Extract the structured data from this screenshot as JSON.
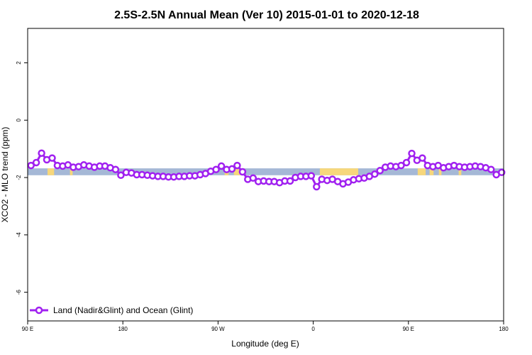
{
  "chart_data": {
    "type": "line",
    "title": "2.5S-2.5N Annual Mean (Ver 10)   2015-01-01 to 2020-12-18",
    "xlabel": "Longitude (deg E)",
    "ylabel": "XCO2 - MLO trend (ppm)",
    "xlim": [
      90,
      450
    ],
    "ylim": [
      -7.0,
      3.2
    ],
    "x_ticks": [
      {
        "value": 90,
        "label": "90 E"
      },
      {
        "value": 162,
        "label": "180"
      },
      {
        "value": 234,
        "label": "90 W"
      },
      {
        "value": 306,
        "label": "0"
      },
      {
        "value": 378,
        "label": "90 E"
      },
      {
        "value": 450,
        "label": "180"
      }
    ],
    "y_ticks": [
      {
        "value": 2,
        "label": "2"
      },
      {
        "value": 0,
        "label": "0"
      },
      {
        "value": -2,
        "label": "-2"
      },
      {
        "value": -4,
        "label": "-4"
      },
      {
        "value": -6,
        "label": "-6"
      }
    ],
    "grid": false,
    "legend": {
      "position": "bottom-left",
      "entries": [
        "Land (Nadir&Glint) and Ocean (Glint)"
      ]
    },
    "series": [
      {
        "name": "Land (Nadir&Glint) and Ocean (Glint)",
        "color": "#a020f0",
        "x": [
          92.5,
          96.5,
          100.5,
          104.5,
          108.5,
          112.5,
          116.5,
          120.5,
          124.5,
          128.5,
          132.5,
          136.5,
          140.5,
          144.5,
          148.5,
          152.5,
          156.5,
          160.5,
          164.5,
          168.5,
          172.5,
          176.5,
          180.5,
          184.5,
          188.5,
          192.5,
          196.5,
          200.5,
          204.5,
          208.5,
          212.5,
          216.5,
          220.5,
          224.5,
          228.5,
          232.5,
          236.5,
          240.5,
          244.5,
          248.5,
          252.5,
          256.5,
          260.5,
          264.5,
          268.5,
          272.5,
          276.5,
          280.5,
          284.5,
          288.5,
          292.5,
          296.5,
          300.5,
          304.5,
          308.5,
          312.5,
          316.5,
          320.5,
          324.5,
          328.5,
          332.5,
          336.5,
          340.5,
          344.5,
          348.5,
          352.5,
          356.5,
          360.5,
          364.5,
          368.5,
          372.5,
          376.5,
          380.5,
          384.5,
          388.5,
          392.5,
          396.5,
          400.5,
          404.5,
          408.5,
          412.5,
          416.5,
          420.5,
          424.5,
          428.5,
          432.5,
          436.5,
          440.5,
          444.5,
          448.5
        ],
        "values": [
          -1.58,
          -1.48,
          -1.15,
          -1.38,
          -1.32,
          -1.58,
          -1.6,
          -1.56,
          -1.64,
          -1.62,
          -1.56,
          -1.6,
          -1.64,
          -1.6,
          -1.6,
          -1.66,
          -1.72,
          -1.92,
          -1.82,
          -1.84,
          -1.9,
          -1.9,
          -1.92,
          -1.94,
          -1.96,
          -1.96,
          -1.98,
          -1.98,
          -1.96,
          -1.96,
          -1.94,
          -1.94,
          -1.9,
          -1.86,
          -1.78,
          -1.72,
          -1.6,
          -1.72,
          -1.7,
          -1.58,
          -1.8,
          -2.06,
          -2.02,
          -2.14,
          -2.12,
          -2.14,
          -2.14,
          -2.18,
          -2.12,
          -2.12,
          -2.0,
          -1.96,
          -1.96,
          -1.94,
          -2.32,
          -2.06,
          -2.1,
          -2.06,
          -2.14,
          -2.22,
          -2.16,
          -2.08,
          -2.04,
          -2.02,
          -1.96,
          -1.88,
          -1.76,
          -1.64,
          -1.6,
          -1.62,
          -1.58,
          -1.48,
          -1.16,
          -1.4,
          -1.32,
          -1.58,
          -1.62,
          -1.58,
          -1.66,
          -1.62,
          -1.58,
          -1.62,
          -1.64,
          -1.62,
          -1.6,
          -1.62,
          -1.66,
          -1.72,
          -1.9,
          -1.82
        ]
      }
    ],
    "surface_band": {
      "range": [
        -1.92,
        -1.68
      ],
      "ocean_color": "#a5b8d6",
      "land_color": "#f7d77b",
      "land_segments": [
        [
          105,
          110
        ],
        [
          122,
          124
        ],
        [
          239,
          242
        ],
        [
          246,
          254
        ],
        [
          311,
          340
        ],
        [
          385,
          391
        ],
        [
          394,
          397
        ],
        [
          401,
          403
        ],
        [
          416,
          418
        ]
      ]
    }
  }
}
